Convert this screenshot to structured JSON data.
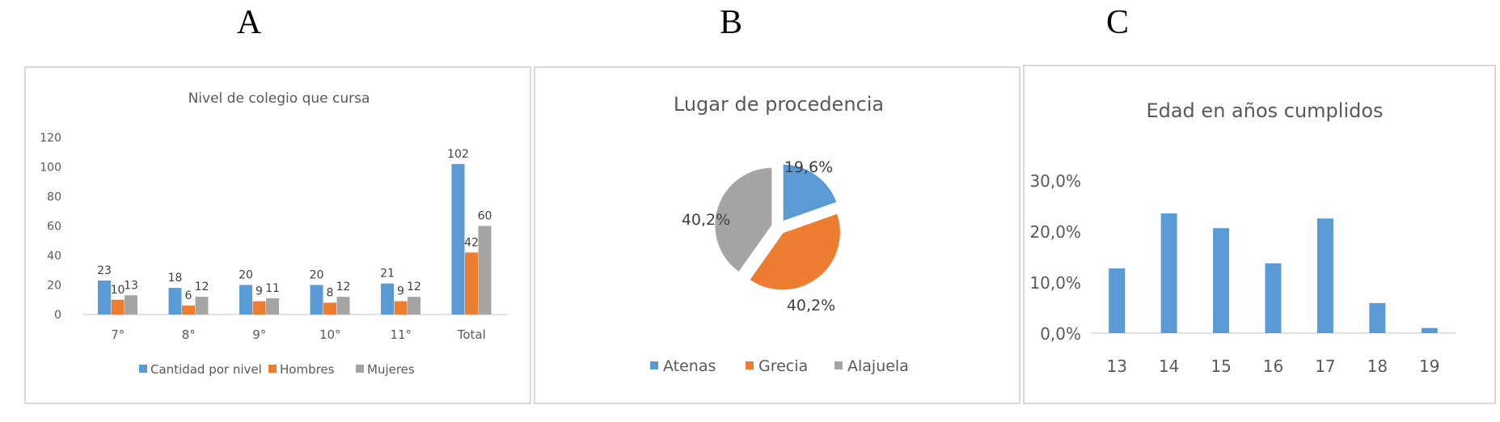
{
  "panels": [
    {
      "letter": "A"
    },
    {
      "letter": "B"
    },
    {
      "letter": "C"
    }
  ],
  "chart_data": [
    {
      "type": "bar",
      "title": "Nivel de colegio que cursa",
      "categories": [
        "7°",
        "8°",
        "9°",
        "10°",
        "11°",
        "Total"
      ],
      "series": [
        {
          "name": "Cantidad por nivel",
          "color": "#5b9bd5",
          "values": [
            23,
            18,
            20,
            20,
            21,
            102
          ]
        },
        {
          "name": "Hombres",
          "color": "#ed7d31",
          "values": [
            10,
            6,
            9,
            8,
            9,
            42
          ]
        },
        {
          "name": "Mujeres",
          "color": "#a5a5a5",
          "values": [
            13,
            12,
            11,
            12,
            12,
            60
          ]
        }
      ],
      "yticks": [
        "0",
        "20",
        "40",
        "60",
        "80",
        "100",
        "120"
      ],
      "ylim": [
        0,
        120
      ],
      "grid": false,
      "legend": "bottom"
    },
    {
      "type": "pie",
      "title": "Lugar de procedencia",
      "slices": [
        {
          "name": "Atenas",
          "value": 19.6,
          "label": "19,6%",
          "color": "#5b9bd5"
        },
        {
          "name": "Grecia",
          "value": 40.2,
          "label": "40,2%",
          "color": "#ed7d31"
        },
        {
          "name": "Alajuela",
          "value": 40.2,
          "label": "40,2%",
          "color": "#a5a5a5"
        }
      ],
      "legend": "bottom"
    },
    {
      "type": "bar",
      "title": "Edad en años cumplidos",
      "categories": [
        "13",
        "14",
        "15",
        "16",
        "17",
        "18",
        "19"
      ],
      "series": [
        {
          "color": "#5b9bd5",
          "values": [
            12.7,
            23.5,
            20.6,
            13.7,
            22.5,
            5.9,
            1.0
          ]
        }
      ],
      "yticks": [
        "0,0%",
        "10,0%",
        "20,0%",
        "30,0%"
      ],
      "ylim": [
        0,
        30
      ],
      "grid": false,
      "legend": "none"
    }
  ]
}
